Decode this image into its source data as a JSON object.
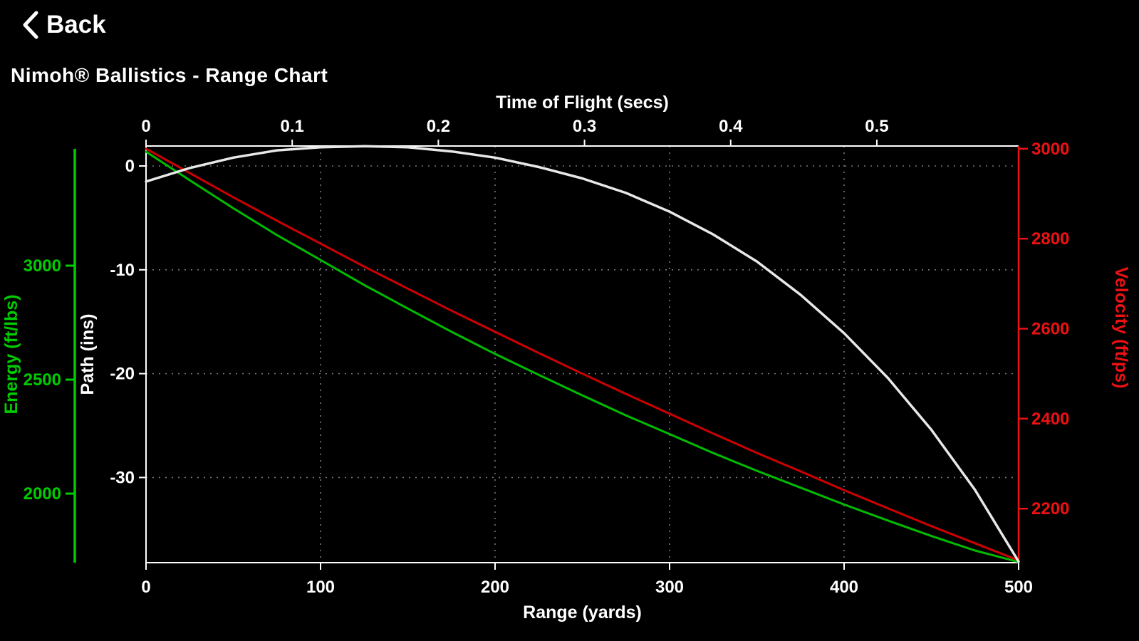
{
  "nav": {
    "back_label": "Back"
  },
  "title": "Nimoh® Ballistics - Range Chart",
  "colors": {
    "background": "#000000",
    "foreground": "#ffffff",
    "energy": "#00cc00",
    "velocity": "#ee1111",
    "grid": "#787878"
  },
  "chart_data": {
    "type": "line",
    "title": "Nimoh® Ballistics - Range Chart",
    "legend": "none",
    "grid": {
      "on": true,
      "color": "#787878",
      "vertical_ticks": [
        100,
        200,
        300,
        400
      ],
      "horizontal_ticks": [
        0,
        -10,
        -20,
        -30
      ]
    },
    "axes": {
      "top": {
        "label": "Time of Flight (secs)",
        "tick_labels": [
          "0",
          "0.1",
          "0.2",
          "0.3",
          "0.4",
          "0.5"
        ],
        "tick_values": [
          0,
          0.1,
          0.2,
          0.3,
          0.4,
          0.5
        ],
        "range": [
          0,
          0.597
        ],
        "color": "#ffffff"
      },
      "bottom": {
        "label": "Range (yards)",
        "tick_labels": [
          "0",
          "100",
          "200",
          "300",
          "400",
          "500"
        ],
        "tick_values": [
          0,
          100,
          200,
          300,
          400,
          500
        ],
        "range": [
          0,
          500
        ],
        "color": "#ffffff"
      },
      "path": {
        "label": "Path (ins)",
        "tick_labels": [
          "0",
          "-10",
          "-20",
          "-30"
        ],
        "tick_values": [
          0,
          -10,
          -20,
          -30
        ],
        "range": [
          -38.2,
          1.92
        ],
        "color": "#ffffff"
      },
      "energy": {
        "label": "Energy (ft/lbs)",
        "tick_labels": [
          "3000",
          "2500",
          "2000"
        ],
        "tick_values": [
          3000,
          2500,
          2000
        ],
        "range": [
          1697,
          3525
        ],
        "color": "#00cc00"
      },
      "velocity": {
        "label": "Velocity (ft/ps)",
        "tick_labels": [
          "3000",
          "2800",
          "2600",
          "2400",
          "2200"
        ],
        "tick_values": [
          3000,
          2800,
          2600,
          2400,
          2200
        ],
        "range": [
          2080,
          3006
        ],
        "color": "#ee1111"
      }
    },
    "x_yards": [
      0,
      25,
      50,
      75,
      100,
      125,
      150,
      175,
      200,
      225,
      250,
      275,
      300,
      325,
      350,
      375,
      400,
      425,
      450,
      475,
      500
    ],
    "series": [
      {
        "name": "Energy",
        "axis": "energy",
        "color": "#00bb00",
        "width": 3,
        "values": [
          3500,
          3375,
          3252,
          3134,
          3025,
          2915,
          2812,
          2710,
          2613,
          2521,
          2431,
          2343,
          2261,
          2178,
          2100,
          2026,
          1952,
          1882,
          1814,
          1750,
          1700
        ]
      },
      {
        "name": "Velocity",
        "axis": "velocity",
        "color": "#cc0000",
        "width": 3,
        "values": [
          3000,
          2946,
          2892,
          2840,
          2789,
          2738,
          2689,
          2640,
          2593,
          2546,
          2500,
          2455,
          2411,
          2367,
          2324,
          2283,
          2241,
          2201,
          2161,
          2123,
          2085
        ]
      },
      {
        "name": "Path",
        "axis": "path",
        "color": "#e8e8e8",
        "width": 3.5,
        "values": [
          -1.5,
          -0.2,
          0.8,
          1.5,
          1.8,
          1.9,
          1.8,
          1.4,
          0.8,
          -0.1,
          -1.2,
          -2.6,
          -4.4,
          -6.6,
          -9.2,
          -12.4,
          -16.1,
          -20.4,
          -25.4,
          -31.2,
          -38.1
        ]
      }
    ]
  }
}
